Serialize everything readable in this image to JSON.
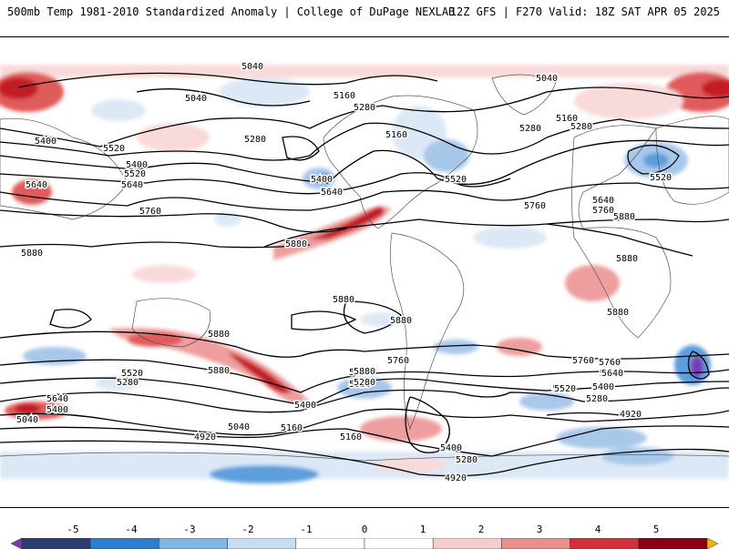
{
  "header": {
    "left_title": "500mb Temp 1981-2010 Standardized Anomaly | College of DuPage NEXLAB",
    "right_title": "12Z GFS | F270 Valid: 18Z SAT APR 05 2025"
  },
  "map": {
    "contour_labels": [
      "5040",
      "5040",
      "5160",
      "5280",
      "5040",
      "5160",
      "5280",
      "5400",
      "5520",
      "5640",
      "5760",
      "5280",
      "5160",
      "5400",
      "5520",
      "5640",
      "5280",
      "5400",
      "5520",
      "5640",
      "5760",
      "5880",
      "5880",
      "5880",
      "5880",
      "5760",
      "5880",
      "5520",
      "5640",
      "5880",
      "5880",
      "5880",
      "5880",
      "5760",
      "5640",
      "5520",
      "5400",
      "5280",
      "5160",
      "5040",
      "5880",
      "5760",
      "5640",
      "5520",
      "5400",
      "5280",
      "5760",
      "5640",
      "5520",
      "5400",
      "5280",
      "4920",
      "5040",
      "4920",
      "5040",
      "4920",
      "5160",
      "5280",
      "5400",
      "5520",
      "5400",
      "5640",
      "5160",
      "5040",
      "5280"
    ],
    "anomaly_palette": {
      "strong_warm": "#8b0012",
      "warm_4": "#c41a26",
      "warm_3": "#e05b5b",
      "warm_2": "#ee9e9e",
      "warm_1": "#f9dada",
      "neutral": "#ffffff",
      "cool_1": "#dce8f6",
      "cool_2": "#a8c8ea",
      "cool_3": "#5b9fdc",
      "cool_4": "#2c5fa3",
      "strong_cool": "#7a3ab5"
    }
  },
  "colorbar": {
    "ticks": [
      "-5",
      "-4",
      "-3",
      "-2",
      "-1",
      "0",
      "1",
      "2",
      "3",
      "4",
      "5"
    ],
    "colors": [
      "#7a3ab5",
      "#2c3e6e",
      "#2c7fcf",
      "#80b6e6",
      "#c9ddf2",
      "#ffffff",
      "#ffffff",
      "#f6cccc",
      "#e9908f",
      "#d4303a",
      "#8b0012",
      "#f5b400"
    ]
  }
}
